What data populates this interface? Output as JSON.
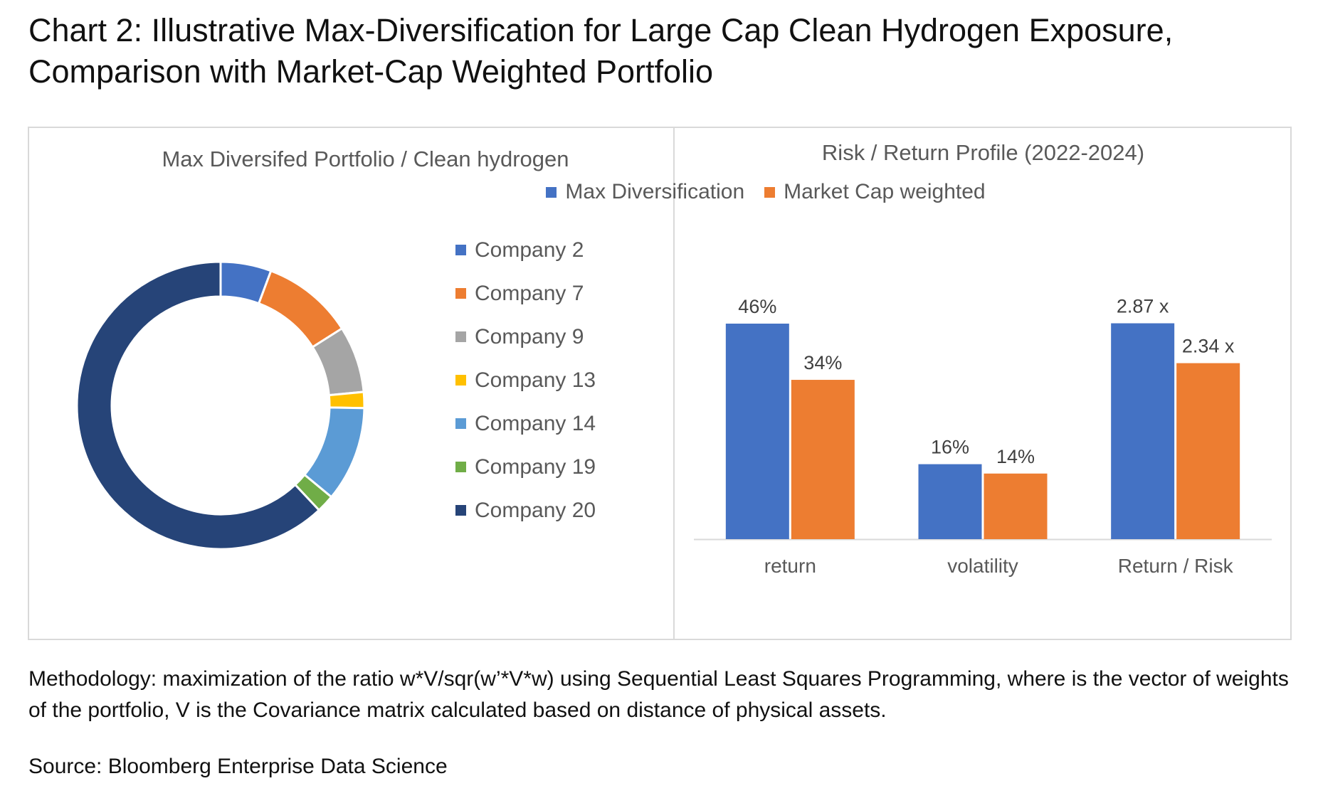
{
  "page": {
    "title": "Chart 2: Illustrative Max-Diversification for Large Cap Clean Hydrogen Exposure, Comparison with Market-Cap Weighted Portfolio",
    "methodology": "Methodology: maximization of the ratio w*V/sqr(w’*V*w) using Sequential Least Squares Programming, where is the vector of weights of the portfolio, V is the Covariance matrix calculated based on distance of physical assets.",
    "source": "Source: Bloomberg Enterprise Data Science"
  },
  "chart_data": [
    {
      "type": "pie",
      "donut": true,
      "title": "Max Diversifed Portfolio / Clean hydrogen",
      "legend_position": "right",
      "slices": [
        {
          "label": "Company 2",
          "value": 5.7,
          "color": "#4472c4"
        },
        {
          "label": "Company 7",
          "value": 10.3,
          "color": "#ed7d31"
        },
        {
          "label": "Company 9",
          "value": 7.5,
          "color": "#a5a5a5"
        },
        {
          "label": "Company 13",
          "value": 1.8,
          "color": "#ffc000"
        },
        {
          "label": "Company 14",
          "value": 10.7,
          "color": "#5b9bd5"
        },
        {
          "label": "Company 19",
          "value": 2.0,
          "color": "#70ad47"
        },
        {
          "label": "Company 20",
          "value": 62.0,
          "color": "#264478"
        }
      ]
    },
    {
      "type": "bar",
      "title": "Risk / Return Profile (2022-2024)",
      "legend_position": "top",
      "categories": [
        "return",
        "volatility",
        "Return / Risk"
      ],
      "series": [
        {
          "name": "Max Diversification",
          "color": "#4472c4",
          "values": [
            0.46,
            0.16,
            2.87
          ],
          "labels": [
            "46%",
            "16%",
            "2.87 x"
          ]
        },
        {
          "name": "Market Cap weighted",
          "color": "#ed7d31",
          "values": [
            0.34,
            0.14,
            2.34
          ],
          "labels": [
            "34%",
            "14%",
            "2.34 x"
          ]
        }
      ],
      "grid": false
    }
  ]
}
